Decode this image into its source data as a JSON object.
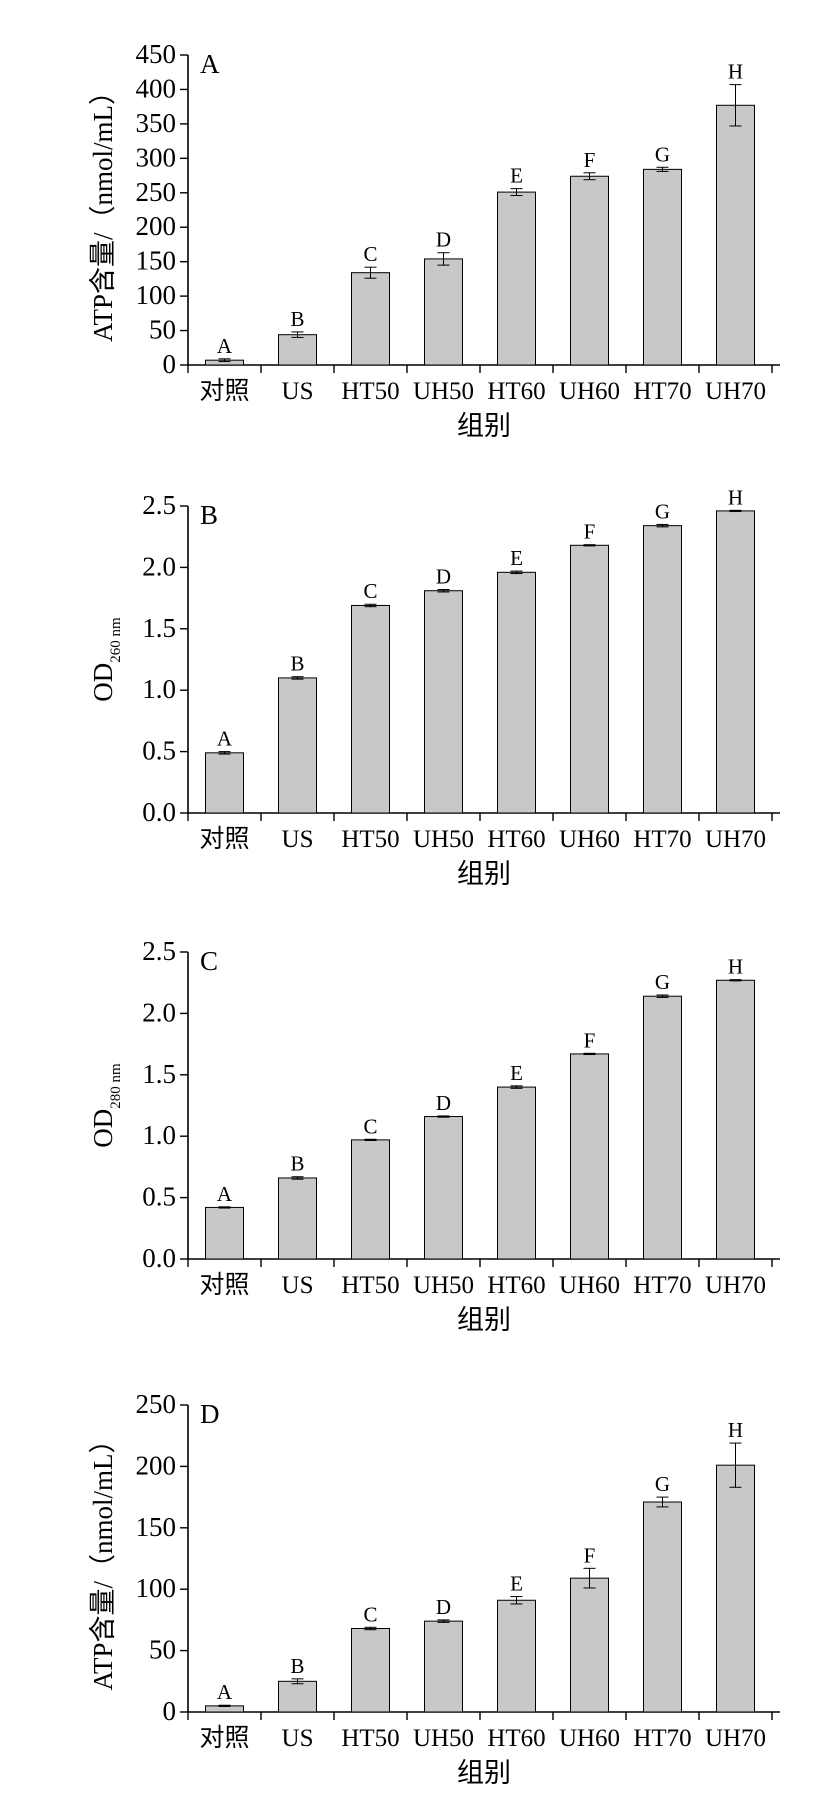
{
  "chart_data": [
    {
      "type": "bar",
      "panel_label": "A",
      "ylabel": "ATP含量/（nmol/mL）",
      "xlabel": "组别",
      "categories": [
        "对照",
        "US",
        "HT50",
        "UH50",
        "HT60",
        "UH60",
        "HT70",
        "UH70"
      ],
      "values": [
        7,
        44,
        134,
        154,
        251,
        274,
        284,
        377
      ],
      "errors": [
        2,
        4,
        8,
        9,
        5,
        5,
        3,
        30
      ],
      "letters": [
        "A",
        "B",
        "C",
        "D",
        "E",
        "F",
        "G",
        "H"
      ],
      "ylim": [
        0,
        450
      ],
      "yticks": [
        0,
        50,
        100,
        150,
        200,
        250,
        300,
        350,
        400,
        450
      ],
      "ytick_labels": [
        "0",
        "50",
        "100",
        "150",
        "200",
        "250",
        "300",
        "350",
        "400",
        "450"
      ]
    },
    {
      "type": "bar",
      "panel_label": "B",
      "ylabel": "OD",
      "ylabel_sub": "260 nm",
      "xlabel": "组别",
      "categories": [
        "对照",
        "US",
        "HT50",
        "UH50",
        "HT60",
        "UH60",
        "HT70",
        "UH70"
      ],
      "values": [
        0.49,
        1.1,
        1.69,
        1.81,
        1.96,
        2.18,
        2.34,
        2.46
      ],
      "errors": [
        0.01,
        0.01,
        0.01,
        0.01,
        0.01,
        0.005,
        0.01,
        0.005
      ],
      "letters": [
        "A",
        "B",
        "C",
        "D",
        "E",
        "F",
        "G",
        "H"
      ],
      "ylim": [
        0,
        2.5
      ],
      "yticks": [
        0,
        0.5,
        1.0,
        1.5,
        2.0,
        2.5
      ],
      "ytick_labels": [
        "0.0",
        "0.5",
        "1.0",
        "1.5",
        "2.0",
        "2.5"
      ]
    },
    {
      "type": "bar",
      "panel_label": "C",
      "ylabel": "OD",
      "ylabel_sub": "280 nm",
      "xlabel": "组别",
      "categories": [
        "对照",
        "US",
        "HT50",
        "UH50",
        "HT60",
        "UH60",
        "HT70",
        "UH70"
      ],
      "values": [
        0.42,
        0.66,
        0.97,
        1.16,
        1.4,
        1.67,
        2.14,
        2.27
      ],
      "errors": [
        0.005,
        0.01,
        0.005,
        0.005,
        0.01,
        0.005,
        0.01,
        0.005
      ],
      "letters": [
        "A",
        "B",
        "C",
        "D",
        "E",
        "F",
        "G",
        "H"
      ],
      "ylim": [
        0,
        2.5
      ],
      "yticks": [
        0,
        0.5,
        1.0,
        1.5,
        2.0,
        2.5
      ],
      "ytick_labels": [
        "0.0",
        "0.5",
        "1.0",
        "1.5",
        "2.0",
        "2.5"
      ]
    },
    {
      "type": "bar",
      "panel_label": "D",
      "ylabel": "ATP含量/（nmol/mL）",
      "xlabel": "组别",
      "categories": [
        "对照",
        "US",
        "HT50",
        "UH50",
        "HT60",
        "UH60",
        "HT70",
        "UH70"
      ],
      "values": [
        5,
        25,
        68,
        74,
        91,
        109,
        171,
        201
      ],
      "errors": [
        0.5,
        2,
        1,
        1,
        3,
        8,
        4,
        18
      ],
      "letters": [
        "A",
        "B",
        "C",
        "D",
        "E",
        "F",
        "G",
        "H"
      ],
      "ylim": [
        0,
        250
      ],
      "yticks": [
        0,
        50,
        100,
        150,
        200,
        250
      ],
      "ytick_labels": [
        "0",
        "50",
        "100",
        "150",
        "200",
        "250"
      ]
    }
  ]
}
